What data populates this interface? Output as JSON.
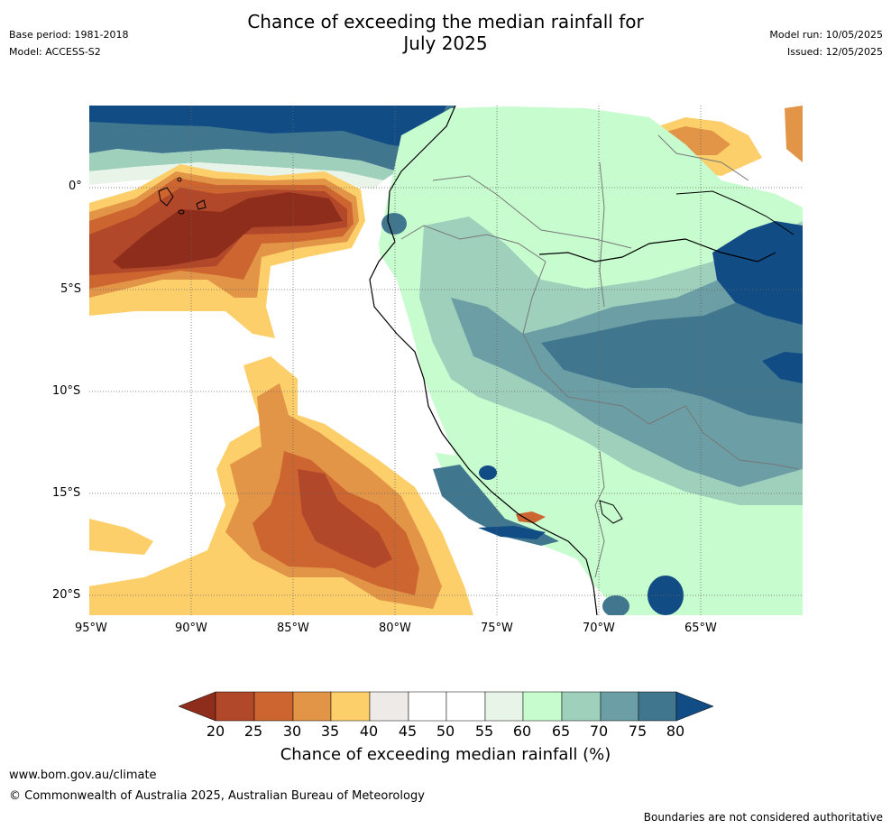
{
  "header": {
    "title_line1": "Chance of exceeding the median rainfall for",
    "title_line2": "July 2025",
    "base_period": "Base period: 1981-2018",
    "model": "Model: ACCESS-S2",
    "model_run": "Model run: 10/05/2025",
    "issued": "Issued: 12/05/2025"
  },
  "map": {
    "lon_ticks": [
      "95°W",
      "90°W",
      "85°W",
      "80°W",
      "75°W",
      "70°W",
      "65°W"
    ],
    "lat_ticks": [
      "0°",
      "5°S",
      "10°S",
      "15°S",
      "20°S"
    ],
    "palette": {
      "c20": "#8f2d1c",
      "c25": "#b1482a",
      "c30": "#cc6530",
      "c35": "#e29447",
      "c40": "#fdcf6a",
      "c45": "#eeeae7",
      "c50": "#ffffff",
      "c55": "#ffffff",
      "c60": "#e9f4e8",
      "c65": "#c7fcce",
      "c70": "#9fd0bc",
      "c75": "#6c9fa5",
      "c80": "#41778e",
      "c85": "#124c84"
    }
  },
  "colorbar": {
    "labels": [
      "20",
      "25",
      "30",
      "35",
      "40",
      "45",
      "50",
      "55",
      "60",
      "65",
      "70",
      "75",
      "80"
    ],
    "title": "Chance of exceeding median rainfall (%)"
  },
  "footer": {
    "website": "www.bom.gov.au/climate",
    "copyright": "© Commonwealth of Australia 2025, Australian Bureau of Meteorology",
    "disclaimer": "Boundaries are not considered authoritative"
  }
}
